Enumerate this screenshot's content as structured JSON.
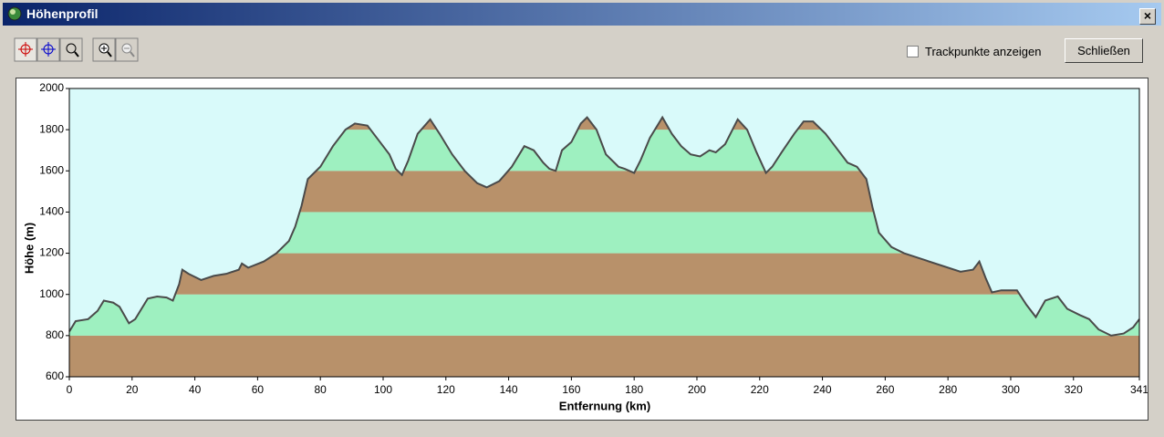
{
  "window": {
    "title": "Höhenprofil",
    "checkbox_label": "Trackpunkte anzeigen",
    "close_button": "Schließen"
  },
  "chart_data": {
    "type": "area",
    "x_label": "Entfernung   (km)",
    "y_label": "Höhe (m)",
    "x": [
      0,
      2,
      6,
      9,
      11,
      14,
      16,
      19,
      21,
      25,
      28,
      31,
      33,
      35,
      36,
      38,
      42,
      46,
      50,
      54,
      55,
      57,
      62,
      66,
      70,
      72,
      74,
      76,
      80,
      84,
      88,
      91,
      95,
      99,
      102,
      104,
      106,
      108,
      111,
      115,
      118,
      122,
      126,
      130,
      133,
      137,
      141,
      145,
      148,
      151,
      153,
      155,
      157,
      160,
      163,
      165,
      168,
      171,
      175,
      177,
      180,
      182,
      185,
      189,
      192,
      195,
      198,
      201,
      204,
      206,
      209,
      213,
      216,
      219,
      222,
      224,
      227,
      231,
      234,
      237,
      241,
      244,
      248,
      251,
      254,
      256,
      258,
      262,
      266,
      272,
      278,
      284,
      288,
      290,
      292,
      294,
      297,
      302,
      305,
      308,
      311,
      315,
      318,
      322,
      325,
      328,
      332,
      336,
      339,
      341
    ],
    "values": [
      820,
      870,
      880,
      920,
      970,
      960,
      940,
      860,
      880,
      980,
      990,
      985,
      970,
      1050,
      1120,
      1100,
      1070,
      1090,
      1100,
      1120,
      1150,
      1130,
      1160,
      1200,
      1260,
      1330,
      1430,
      1560,
      1620,
      1720,
      1800,
      1830,
      1820,
      1740,
      1680,
      1610,
      1580,
      1650,
      1780,
      1850,
      1780,
      1680,
      1600,
      1540,
      1520,
      1550,
      1620,
      1720,
      1700,
      1640,
      1610,
      1600,
      1700,
      1740,
      1830,
      1860,
      1800,
      1680,
      1620,
      1610,
      1590,
      1650,
      1760,
      1860,
      1780,
      1720,
      1680,
      1670,
      1700,
      1690,
      1730,
      1850,
      1800,
      1690,
      1590,
      1620,
      1690,
      1780,
      1840,
      1840,
      1780,
      1720,
      1640,
      1620,
      1560,
      1420,
      1300,
      1230,
      1200,
      1170,
      1140,
      1110,
      1120,
      1160,
      1080,
      1010,
      1020,
      1020,
      950,
      890,
      970,
      990,
      930,
      900,
      880,
      830,
      800,
      810,
      840,
      880
    ],
    "xlim": [
      0,
      341
    ],
    "ylim": [
      600,
      2000
    ],
    "xticks": [
      0,
      20,
      40,
      60,
      80,
      100,
      120,
      140,
      160,
      180,
      200,
      220,
      240,
      260,
      280,
      300,
      320,
      341
    ],
    "yticks": [
      600,
      800,
      1000,
      1200,
      1400,
      1600,
      1800,
      2000
    ],
    "line_color": "#4a4a4a",
    "band_colors": [
      "#b8916a",
      "#9ef0c0"
    ],
    "background_color": "#d9fafa"
  }
}
